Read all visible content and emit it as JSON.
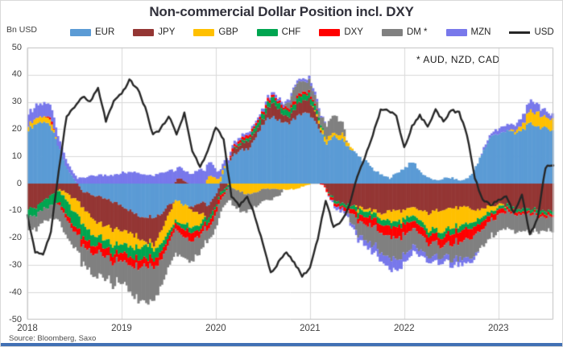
{
  "title": "Non-commercial Dollar Position incl. DXY",
  "y_axis_unit": "Bn USD",
  "annotation": "* AUD,  NZD,  CAD",
  "source": "Source: Bloomberg,  Saxo",
  "accent_bar_color": "#4170B4",
  "legend": [
    {
      "label": "EUR",
      "color": "#5B9BD5",
      "type": "box"
    },
    {
      "label": "JPY",
      "color": "#943634",
      "type": "box"
    },
    {
      "label": "GBP",
      "color": "#FFC000",
      "type": "box"
    },
    {
      "label": "CHF",
      "color": "#00A550",
      "type": "box"
    },
    {
      "label": "DXY",
      "color": "#FF0000",
      "type": "box"
    },
    {
      "label": "DM *",
      "color": "#808080",
      "type": "box"
    },
    {
      "label": "MZN",
      "color": "#7878EB",
      "type": "box"
    },
    {
      "label": "USD",
      "color": "#262626",
      "type": "line"
    }
  ],
  "chart_data": {
    "type": "bar",
    "subtype": "stacked-bars-with-line-overlay",
    "frequency": "monthly",
    "x_start": "2018-01",
    "x_end": "2023-08",
    "ylim": [
      -50,
      50
    ],
    "y_ticks": [
      50,
      40,
      30,
      20,
      10,
      0,
      -10,
      -20,
      -30,
      -40,
      -50
    ],
    "x_ticks": {
      "labels": [
        "2018",
        "2019",
        "2020",
        "2021",
        "2022",
        "2023"
      ],
      "month_index": [
        0,
        12,
        24,
        36,
        48,
        60
      ]
    },
    "grid": {
      "color": "#d9d9d9",
      "border_color": "#bfbfbf"
    },
    "series": [
      {
        "name": "EUR",
        "color": "#5B9BD5",
        "values": [
          20,
          22,
          23,
          20,
          12,
          5,
          1,
          -3,
          -4,
          -5,
          -6,
          -7,
          -8,
          -10,
          -12,
          -12,
          -12,
          -11,
          -7,
          -6,
          -8,
          -8,
          -7,
          -8,
          -4,
          6,
          10,
          12,
          13,
          17,
          22,
          25,
          23,
          22,
          24,
          26,
          25,
          20,
          15,
          17,
          16,
          13,
          10,
          8,
          5,
          3,
          2,
          4,
          6,
          8,
          4,
          2,
          1,
          2,
          2,
          1,
          2,
          6,
          12,
          18,
          18,
          20,
          18,
          20,
          22,
          21,
          20,
          20
        ]
      },
      {
        "name": "JPY",
        "color": "#943634",
        "values": [
          -9,
          -9,
          -6,
          -4,
          -2,
          -4,
          -6,
          -6,
          -8,
          -10,
          -10,
          -10,
          -9,
          -8,
          -8,
          -9,
          -10,
          -6,
          -3,
          2,
          1,
          -2,
          -4,
          -5,
          -4,
          -2,
          2,
          2,
          3,
          2,
          2,
          5,
          4,
          2,
          4,
          5,
          5,
          2,
          -2,
          -6,
          -7,
          -8,
          -9,
          -9,
          -10,
          -11,
          -10,
          -10,
          -10,
          -9,
          -10,
          -11,
          -10,
          -9,
          -9,
          -9,
          -9,
          -10,
          -9,
          -8,
          -8,
          -8,
          -9,
          -9,
          -9,
          -10,
          -10,
          -10
        ]
      },
      {
        "name": "GBP",
        "color": "#FFC000",
        "values": [
          2,
          2,
          2,
          2,
          -1,
          -3,
          -5,
          -6,
          -6,
          -5,
          -5,
          -6,
          -5,
          -5,
          -4,
          -1,
          -2,
          -5,
          -7,
          -8,
          -7,
          -6,
          -4,
          3,
          2,
          1,
          -2,
          -3,
          -4,
          -3,
          -2,
          -2,
          -2,
          -2,
          -2,
          -1,
          0,
          1,
          2,
          1,
          2,
          1,
          -1,
          -1,
          -1,
          -2,
          -4,
          -4,
          -3,
          -3,
          -4,
          -6,
          -7,
          -8,
          -7,
          -7,
          -6,
          -4,
          -3,
          -2,
          -1,
          0,
          1,
          2,
          5,
          5,
          4,
          4
        ]
      },
      {
        "name": "CHF",
        "color": "#00A550",
        "values": [
          -3,
          -3,
          -3,
          -4,
          -4,
          -5,
          -5,
          -5,
          -4,
          -3,
          -3,
          -3,
          -3,
          -4,
          -4,
          -5,
          -4,
          -3,
          -2,
          -1,
          -2,
          -2,
          -2,
          -2,
          -1,
          -1,
          0,
          1,
          1,
          2,
          2,
          2,
          2,
          2,
          2,
          2,
          2,
          1,
          0,
          -1,
          -1,
          -1,
          -2,
          -2,
          -2,
          -2,
          -2,
          -2,
          -2,
          -2,
          -2,
          -2,
          -2,
          -2,
          -2,
          -2,
          -2,
          -2,
          -2,
          -1,
          -1,
          -1,
          -1,
          -1,
          -1,
          -1,
          -1,
          -1
        ]
      },
      {
        "name": "DXY",
        "color": "#FF0000",
        "values": [
          0,
          0,
          0,
          1,
          -1,
          -2,
          -2,
          -3,
          -3,
          -3,
          -3,
          -3,
          -3,
          -3,
          -3,
          -3,
          -3,
          -3,
          -2,
          -2,
          -3,
          -3,
          -2,
          -2,
          -2,
          -1,
          1,
          1,
          1,
          1,
          1,
          1,
          1,
          1,
          1,
          1,
          1,
          0,
          -1,
          -1,
          -1,
          -2,
          -2,
          -3,
          -3,
          -3,
          -4,
          -4,
          -4,
          -3,
          -3,
          -3,
          -3,
          -3,
          -4,
          -4,
          -4,
          -3,
          -3,
          -2,
          -2,
          -1,
          -1,
          -1,
          -1,
          -1,
          -1,
          -1
        ]
      },
      {
        "name": "DM *",
        "color": "#808080",
        "values": [
          -4,
          -5,
          -5,
          -5,
          -6,
          -7,
          -6,
          -7,
          -8,
          -9,
          -8,
          -8,
          -8,
          -10,
          -12,
          -13,
          -12,
          -10,
          -8,
          -9,
          -8,
          -7,
          -6,
          -4,
          -5,
          -4,
          -6,
          -7,
          -6,
          -5,
          -4,
          -4,
          -2,
          2,
          5,
          4,
          4,
          2,
          5,
          7,
          4,
          -3,
          -5,
          -6,
          -7,
          -7,
          -8,
          -8,
          -7,
          -6,
          -6,
          -5,
          -5,
          -4,
          -6,
          -6,
          -7,
          -7,
          -6,
          -6,
          -6,
          -6,
          -7,
          -6,
          -7,
          -6,
          -5,
          -5
        ]
      },
      {
        "name": "MZN",
        "color": "#7878EB",
        "values": [
          4,
          5,
          5,
          4,
          3,
          2,
          2,
          2,
          3,
          3,
          3,
          3,
          4,
          4,
          4,
          3,
          3,
          4,
          5,
          4,
          4,
          4,
          5,
          5,
          3,
          2,
          1,
          1,
          1,
          1,
          1,
          1,
          1,
          1,
          1,
          1,
          1,
          1,
          0,
          -1,
          -1,
          -1,
          -2,
          -2,
          -3,
          -3,
          -4,
          -4,
          -3,
          -2,
          -2,
          -2,
          -2,
          -2,
          -2,
          -2,
          -2,
          -1,
          1,
          1,
          2,
          2,
          2,
          3,
          4,
          3,
          2,
          2
        ]
      }
    ],
    "line": {
      "name": "USD",
      "color": "#262626",
      "width": 2.4,
      "values": [
        -12,
        -25,
        -26,
        -18,
        5,
        25,
        28,
        32,
        30,
        35,
        23,
        30,
        33,
        38,
        35,
        28,
        18,
        20,
        25,
        18,
        26,
        12,
        6,
        12,
        21,
        16,
        -5,
        -8,
        -5,
        -12,
        -22,
        -33,
        -29,
        -25,
        -29,
        -34,
        -31,
        -20,
        -6,
        -16,
        -14,
        -8,
        2,
        10,
        18,
        27,
        27,
        25,
        13,
        21,
        25,
        21,
        27,
        23,
        27,
        26,
        18,
        2,
        -6,
        -8,
        -6,
        -5,
        -11,
        -4,
        -19,
        -13,
        6,
        7
      ]
    }
  }
}
